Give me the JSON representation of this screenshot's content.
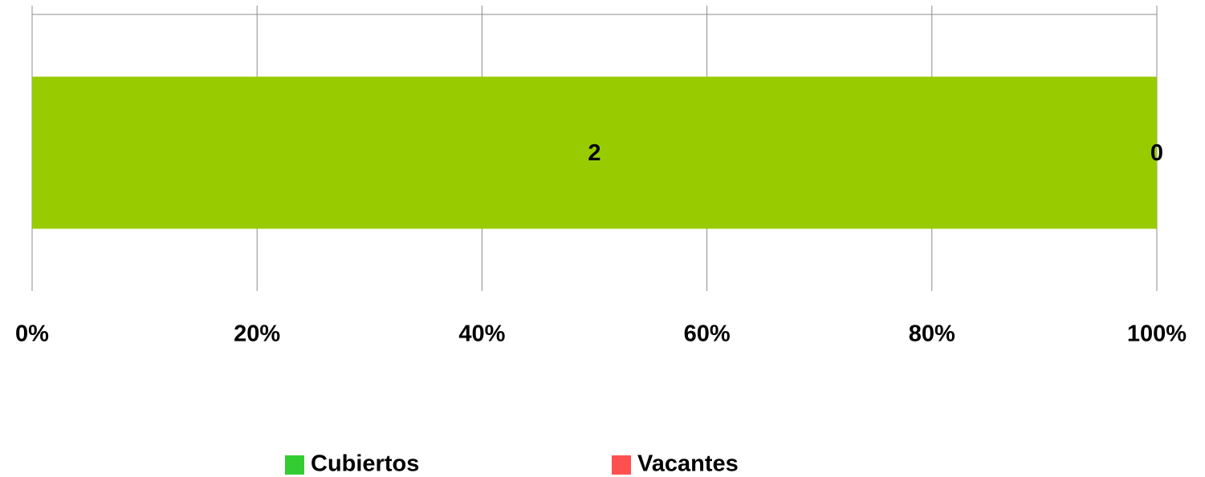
{
  "chart_data": {
    "type": "bar",
    "orientation": "horizontal",
    "stacked": "percent",
    "categories": [
      null
    ],
    "series": [
      {
        "name": "Cubiertos",
        "color": "#99cc00",
        "legend_color": "#33cc33",
        "values": [
          2
        ]
      },
      {
        "name": "Vacantes",
        "color": "#ff5050",
        "legend_color": "#ff5050",
        "values": [
          0
        ]
      }
    ],
    "xlim": [
      0,
      100
    ],
    "xticks": [
      {
        "value": 0,
        "label": "0%"
      },
      {
        "value": 20,
        "label": "20%"
      },
      {
        "value": 40,
        "label": "40%"
      },
      {
        "value": 60,
        "label": "60%"
      },
      {
        "value": 80,
        "label": "80%"
      },
      {
        "value": 100,
        "label": "100%"
      }
    ],
    "grid": true,
    "legend": "bottom"
  }
}
